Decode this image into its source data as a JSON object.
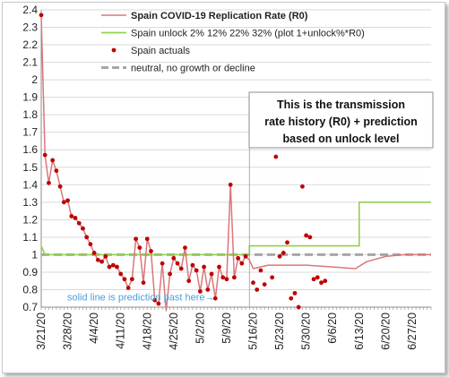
{
  "chart_data": {
    "type": "line",
    "title": "",
    "xlabel": "",
    "ylabel": "",
    "ylim": [
      0.7,
      2.4
    ],
    "ytick_step": 0.1,
    "ytick_labels": [
      "0.7",
      "0.8",
      "0.9",
      "1",
      "1.1",
      "1.2",
      "1.3",
      "1.4",
      "1.5",
      "1.6",
      "1.7",
      "1.8",
      "1.9",
      "2",
      "2.1",
      "2.2",
      "2.3",
      "2.4"
    ],
    "x_start": "2020-03-21",
    "x_end": "2020-07-02",
    "xtick_dates": [
      "2020-03-21",
      "2020-03-28",
      "2020-04-04",
      "2020-04-11",
      "2020-04-18",
      "2020-04-25",
      "2020-05-02",
      "2020-05-09",
      "2020-05-16",
      "2020-05-23",
      "2020-05-30",
      "2020-06-06",
      "2020-06-13",
      "2020-06-20",
      "2020-06-27"
    ],
    "xtick_labels": [
      "3/21/20",
      "3/28/20",
      "4/4/20",
      "4/11/20",
      "4/18/20",
      "4/25/20",
      "5/2/20",
      "5/9/20",
      "5/16/20",
      "5/23/20",
      "5/30/20",
      "6/6/20",
      "6/13/20",
      "6/20/20",
      "6/27/20"
    ],
    "grid": "horizontal",
    "legend_position": "top-right",
    "prediction_start_date": "2020-05-15",
    "colors": {
      "rate": "#d9777b",
      "unlock": "#92d050",
      "actual": "#c00000",
      "neutral": "#a6a6a6",
      "annotation": "#4aa0d8",
      "grid": "#d9d9d9"
    },
    "series": [
      {
        "name": "Spain COVID-19 Replication Rate (R0)",
        "kind": "line",
        "points": [
          [
            "2020-03-21",
            2.37
          ],
          [
            "2020-03-22",
            1.57
          ],
          [
            "2020-03-23",
            1.41
          ],
          [
            "2020-03-24",
            1.54
          ],
          [
            "2020-03-25",
            1.48
          ],
          [
            "2020-03-26",
            1.39
          ],
          [
            "2020-03-27",
            1.3
          ],
          [
            "2020-03-28",
            1.31
          ],
          [
            "2020-03-29",
            1.22
          ],
          [
            "2020-03-30",
            1.21
          ],
          [
            "2020-03-31",
            1.18
          ],
          [
            "2020-04-01",
            1.15
          ],
          [
            "2020-04-02",
            1.1
          ],
          [
            "2020-04-03",
            1.06
          ],
          [
            "2020-04-04",
            1.01
          ],
          [
            "2020-04-05",
            0.97
          ],
          [
            "2020-04-06",
            0.96
          ],
          [
            "2020-04-07",
            0.99
          ],
          [
            "2020-04-08",
            0.93
          ],
          [
            "2020-04-09",
            0.94
          ],
          [
            "2020-04-10",
            0.93
          ],
          [
            "2020-04-11",
            0.89
          ],
          [
            "2020-04-12",
            0.86
          ],
          [
            "2020-04-13",
            0.81
          ],
          [
            "2020-04-14",
            0.86
          ],
          [
            "2020-04-15",
            1.09
          ],
          [
            "2020-04-16",
            1.04
          ],
          [
            "2020-04-17",
            0.84
          ],
          [
            "2020-04-18",
            1.09
          ],
          [
            "2020-04-19",
            1.02
          ],
          [
            "2020-04-20",
            0.74
          ],
          [
            "2020-04-21",
            0.72
          ],
          [
            "2020-04-22",
            0.95
          ],
          [
            "2020-04-23",
            0.68
          ],
          [
            "2020-04-24",
            0.89
          ],
          [
            "2020-04-25",
            0.98
          ],
          [
            "2020-04-26",
            0.95
          ],
          [
            "2020-04-27",
            0.92
          ],
          [
            "2020-04-28",
            1.04
          ],
          [
            "2020-04-29",
            0.85
          ],
          [
            "2020-04-30",
            0.94
          ],
          [
            "2020-05-01",
            0.91
          ],
          [
            "2020-05-02",
            0.79
          ],
          [
            "2020-05-03",
            0.93
          ],
          [
            "2020-05-04",
            0.8
          ],
          [
            "2020-05-05",
            0.89
          ],
          [
            "2020-05-06",
            0.75
          ],
          [
            "2020-05-07",
            0.93
          ],
          [
            "2020-05-08",
            0.87
          ],
          [
            "2020-05-09",
            0.86
          ],
          [
            "2020-05-10",
            1.4
          ],
          [
            "2020-05-11",
            0.87
          ],
          [
            "2020-05-12",
            0.98
          ],
          [
            "2020-05-13",
            0.95
          ],
          [
            "2020-05-14",
            0.99
          ],
          [
            "2020-05-15",
            0.97
          ],
          [
            "2020-05-16",
            0.92
          ],
          [
            "2020-05-20",
            0.94
          ],
          [
            "2020-05-30",
            0.94
          ],
          [
            "2020-06-06",
            0.93
          ],
          [
            "2020-06-12",
            0.92
          ],
          [
            "2020-06-15",
            0.96
          ],
          [
            "2020-06-20",
            0.99
          ],
          [
            "2020-06-25",
            1.0
          ],
          [
            "2020-07-02",
            1.0
          ]
        ]
      },
      {
        "name": "Spain unlock 2% 12% 22% 32% (plot 1+unlock%*R0)",
        "kind": "line",
        "points": [
          [
            "2020-03-21",
            1.05
          ],
          [
            "2020-03-22",
            1.0
          ],
          [
            "2020-05-15",
            1.0
          ],
          [
            "2020-05-15",
            1.05
          ],
          [
            "2020-06-13",
            1.05
          ],
          [
            "2020-06-13",
            1.3
          ],
          [
            "2020-07-02",
            1.3
          ]
        ]
      },
      {
        "name": "Spain actuals",
        "kind": "scatter",
        "points": [
          [
            "2020-03-21",
            2.37
          ],
          [
            "2020-03-22",
            1.57
          ],
          [
            "2020-03-23",
            1.41
          ],
          [
            "2020-03-24",
            1.54
          ],
          [
            "2020-03-25",
            1.48
          ],
          [
            "2020-03-26",
            1.39
          ],
          [
            "2020-03-27",
            1.3
          ],
          [
            "2020-03-28",
            1.31
          ],
          [
            "2020-03-29",
            1.22
          ],
          [
            "2020-03-30",
            1.21
          ],
          [
            "2020-03-31",
            1.18
          ],
          [
            "2020-04-01",
            1.15
          ],
          [
            "2020-04-02",
            1.1
          ],
          [
            "2020-04-03",
            1.06
          ],
          [
            "2020-04-04",
            1.01
          ],
          [
            "2020-04-05",
            0.97
          ],
          [
            "2020-04-06",
            0.96
          ],
          [
            "2020-04-07",
            0.99
          ],
          [
            "2020-04-08",
            0.93
          ],
          [
            "2020-04-09",
            0.94
          ],
          [
            "2020-04-10",
            0.93
          ],
          [
            "2020-04-11",
            0.89
          ],
          [
            "2020-04-12",
            0.86
          ],
          [
            "2020-04-13",
            0.81
          ],
          [
            "2020-04-14",
            0.86
          ],
          [
            "2020-04-15",
            1.09
          ],
          [
            "2020-04-16",
            1.04
          ],
          [
            "2020-04-17",
            0.84
          ],
          [
            "2020-04-18",
            1.09
          ],
          [
            "2020-04-19",
            1.02
          ],
          [
            "2020-04-20",
            0.74
          ],
          [
            "2020-04-21",
            0.72
          ],
          [
            "2020-04-22",
            0.95
          ],
          [
            "2020-04-24",
            0.89
          ],
          [
            "2020-04-25",
            0.98
          ],
          [
            "2020-04-26",
            0.95
          ],
          [
            "2020-04-27",
            0.92
          ],
          [
            "2020-04-28",
            1.04
          ],
          [
            "2020-04-29",
            0.85
          ],
          [
            "2020-04-30",
            0.94
          ],
          [
            "2020-05-01",
            0.91
          ],
          [
            "2020-05-02",
            0.79
          ],
          [
            "2020-05-03",
            0.93
          ],
          [
            "2020-05-04",
            0.8
          ],
          [
            "2020-05-05",
            0.89
          ],
          [
            "2020-05-06",
            0.75
          ],
          [
            "2020-05-07",
            0.93
          ],
          [
            "2020-05-08",
            0.87
          ],
          [
            "2020-05-09",
            0.86
          ],
          [
            "2020-05-10",
            1.4
          ],
          [
            "2020-05-11",
            0.87
          ],
          [
            "2020-05-12",
            0.98
          ],
          [
            "2020-05-13",
            0.95
          ],
          [
            "2020-05-14",
            0.99
          ],
          [
            "2020-05-16",
            0.84
          ],
          [
            "2020-05-17",
            0.8
          ],
          [
            "2020-05-18",
            0.91
          ],
          [
            "2020-05-19",
            0.83
          ],
          [
            "2020-05-21",
            0.87
          ],
          [
            "2020-05-22",
            1.56
          ],
          [
            "2020-05-23",
            0.99
          ],
          [
            "2020-05-24",
            1.01
          ],
          [
            "2020-05-25",
            1.07
          ],
          [
            "2020-05-26",
            0.75
          ],
          [
            "2020-05-27",
            0.78
          ],
          [
            "2020-05-28",
            0.7
          ],
          [
            "2020-05-29",
            1.39
          ],
          [
            "2020-05-30",
            1.11
          ],
          [
            "2020-05-31",
            1.1
          ],
          [
            "2020-06-01",
            0.86
          ],
          [
            "2020-06-02",
            0.87
          ],
          [
            "2020-06-03",
            0.84
          ],
          [
            "2020-06-04",
            0.85
          ]
        ]
      },
      {
        "name": "neutral, no growth or decline",
        "kind": "reference",
        "points": [
          [
            "2020-03-21",
            1.0
          ],
          [
            "2020-07-02",
            1.0
          ]
        ]
      }
    ],
    "annotations": {
      "note": [
        "This is the transmission",
        "rate history (R0) + prediction",
        "based on unlock level"
      ],
      "prediction_label": "solid line is prediction past here→"
    }
  }
}
